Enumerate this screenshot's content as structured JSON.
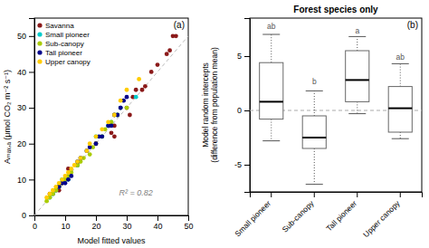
{
  "chart_data": [
    {
      "type": "scatter",
      "panel_label": "(a)",
      "xlabel": "Model fitted values",
      "ylabel": "Aₘₐₓ,ₐ (μmol CO₂ m⁻² s⁻¹)",
      "annotation": "R² = 0.82",
      "xlim": [
        0,
        50
      ],
      "ylim": [
        0,
        55
      ],
      "xticks": [
        0,
        10,
        20,
        30,
        40,
        50
      ],
      "yticks": [
        0,
        10,
        20,
        30,
        40,
        50
      ],
      "grid": false,
      "legend": "upper left",
      "series": [
        {
          "name": "Savanna",
          "color": "#8b1a1a",
          "x": [
            5,
            6,
            7,
            8,
            9,
            10,
            11,
            14,
            20,
            25,
            26,
            26,
            28,
            30,
            31,
            32,
            33,
            35,
            36,
            38,
            40,
            43,
            44,
            45,
            46
          ],
          "values": [
            6,
            6,
            7,
            7,
            9,
            10,
            13,
            14,
            20,
            23,
            22,
            25,
            30,
            30,
            28,
            33,
            35,
            35,
            36,
            40,
            42,
            45,
            46,
            50,
            50
          ]
        },
        {
          "name": "Small pioneer",
          "color": "#00cccc",
          "x": [
            5,
            6,
            7,
            8,
            9,
            10,
            11,
            14,
            20,
            22,
            24,
            25,
            27,
            28,
            33
          ],
          "values": [
            5,
            6,
            7,
            8,
            10,
            10,
            10,
            14,
            22,
            22,
            25,
            26,
            28,
            30,
            33
          ]
        },
        {
          "name": "Sub-canopy",
          "color": "#aacc00",
          "x": [
            4,
            5,
            6,
            7,
            8,
            9,
            10,
            11,
            12,
            14,
            15,
            16,
            18,
            19,
            20,
            22,
            23,
            25,
            26,
            27,
            30
          ],
          "values": [
            4,
            5,
            6,
            7,
            8,
            9,
            10,
            11,
            12,
            14,
            15,
            16,
            17,
            19,
            20,
            22,
            24,
            26,
            28,
            28,
            30
          ]
        },
        {
          "name": "Tall pioneer",
          "color": "#00008b",
          "x": [
            8,
            9,
            10,
            11,
            12,
            14,
            15,
            17,
            18,
            20,
            21,
            22,
            24,
            25,
            26,
            27,
            28,
            29,
            30
          ],
          "values": [
            8,
            9,
            9,
            10,
            11,
            15,
            16,
            18,
            19,
            20,
            22,
            22,
            25,
            25,
            28,
            28,
            30,
            32,
            33
          ]
        },
        {
          "name": "Upper canopy",
          "color": "#ffcc00",
          "x": [
            4,
            5,
            6,
            7,
            8,
            9,
            10,
            11,
            12,
            13,
            14,
            15,
            17,
            18,
            20,
            22,
            24,
            26,
            28,
            30,
            34
          ],
          "values": [
            5,
            6,
            7,
            8,
            9,
            10,
            11,
            12,
            13,
            14,
            15,
            16,
            18,
            20,
            22,
            24,
            26,
            28,
            32,
            35,
            38
          ]
        },
        {
          "type": "line",
          "line_style": "dashed",
          "color": "#bbbbbb",
          "x": [
            0,
            50
          ],
          "values": [
            0,
            50
          ]
        }
      ]
    },
    {
      "type": "box",
      "title": "Forest species only",
      "panel_label": "(b)",
      "ylabel": "Model random intercepts\n(difference from population mean)",
      "categories": [
        "Small pioneer",
        "Sub-canopy",
        "Tall pioneer",
        "Upper canopy"
      ],
      "boxes": [
        {
          "median": 0.8,
          "q1": -0.8,
          "q3": 4.4,
          "whisker_low": -2.8,
          "whisker_high": 7.0
        },
        {
          "median": -2.5,
          "q1": -3.5,
          "q3": -0.5,
          "whisker_low": -6.8,
          "whisker_high": 1.8
        },
        {
          "median": 2.8,
          "q1": 0.8,
          "q3": 5.5,
          "whisker_low": -0.3,
          "whisker_high": 6.8
        },
        {
          "median": 0.2,
          "q1": -2.0,
          "q3": 2.2,
          "whisker_low": -2.6,
          "whisker_high": 4.3
        }
      ],
      "sig_labels": [
        "ab",
        "b",
        "a",
        "ab"
      ],
      "sig_label_y": [
        7.4,
        2.3,
        7.0,
        4.6
      ],
      "hline": {
        "value": 0,
        "line_style": "dashed"
      },
      "ylim": [
        -7.5,
        8.5
      ],
      "yticks": [
        -5,
        0,
        5
      ],
      "grid": false
    }
  ]
}
